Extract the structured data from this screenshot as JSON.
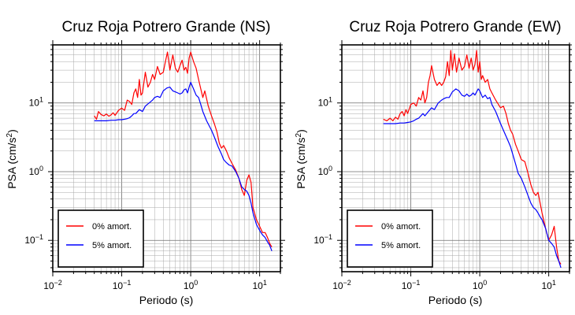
{
  "chart_data": [
    {
      "type": "line",
      "title": "Cruz Roja Potrero Grande (NS)",
      "xlabel": "Periodo (s)",
      "ylabel_main": "PSA (cm/s",
      "ylabel_sup": "2",
      "ylabel_tail": ")",
      "xscale": "log",
      "yscale": "log",
      "xlim": [
        0.01,
        20
      ],
      "ylim": [
        0.035,
        70
      ],
      "grid": true,
      "legend_position": "bottom-left",
      "x_ticks": [
        {
          "base": "10",
          "exp": "−2"
        },
        {
          "base": "10",
          "exp": "−1"
        },
        {
          "base": "10",
          "exp": "0"
        },
        {
          "base": "10",
          "exp": "1"
        }
      ],
      "y_ticks": [
        {
          "base": "10",
          "exp": "−1"
        },
        {
          "base": "10",
          "exp": "0"
        },
        {
          "base": "10",
          "exp": "1"
        }
      ],
      "series": [
        {
          "name": "0% amort.",
          "color": "#ff0000",
          "x": [
            0.04,
            0.043,
            0.046,
            0.05,
            0.055,
            0.06,
            0.065,
            0.07,
            0.075,
            0.08,
            0.09,
            0.1,
            0.11,
            0.12,
            0.13,
            0.14,
            0.15,
            0.16,
            0.17,
            0.18,
            0.19,
            0.2,
            0.22,
            0.24,
            0.26,
            0.28,
            0.3,
            0.33,
            0.36,
            0.4,
            0.43,
            0.46,
            0.5,
            0.55,
            0.6,
            0.65,
            0.7,
            0.75,
            0.8,
            0.85,
            0.9,
            0.95,
            1.0,
            1.1,
            1.2,
            1.3,
            1.4,
            1.5,
            1.6,
            1.8,
            2.0,
            2.2,
            2.4,
            2.6,
            2.8,
            3.0,
            3.3,
            3.6,
            4.0,
            4.5,
            5.0,
            5.5,
            6.0,
            6.5,
            7.0,
            7.5,
            8.0,
            9.0,
            10.0,
            11.0,
            12.0,
            13.0,
            14.0,
            15.0
          ],
          "y": [
            6.5,
            5.8,
            7.5,
            6.8,
            6.5,
            6.9,
            6.4,
            6.7,
            7.2,
            6.6,
            7.8,
            8.4,
            7.8,
            11.0,
            10.5,
            9.5,
            14.0,
            16.0,
            12.0,
            22.0,
            13.0,
            14.0,
            28.0,
            17.0,
            20.0,
            26.0,
            22.0,
            34.0,
            26.0,
            28.0,
            40.0,
            55.0,
            30.0,
            50.0,
            32.0,
            28.0,
            35.0,
            42.0,
            30.0,
            33.0,
            27.0,
            45.0,
            55.0,
            40.0,
            32.0,
            22.0,
            16.0,
            12.0,
            15.0,
            9.0,
            6.5,
            5.0,
            3.8,
            2.6,
            2.2,
            2.4,
            2.0,
            1.6,
            1.3,
            1.05,
            0.8,
            0.55,
            0.45,
            0.75,
            0.9,
            0.7,
            0.3,
            0.2,
            0.16,
            0.13,
            0.13,
            0.11,
            0.09,
            0.08
          ]
        },
        {
          "name": "5% amort.",
          "color": "#0000ff",
          "x": [
            0.04,
            0.05,
            0.06,
            0.07,
            0.08,
            0.09,
            0.1,
            0.11,
            0.12,
            0.13,
            0.14,
            0.15,
            0.16,
            0.18,
            0.2,
            0.22,
            0.25,
            0.28,
            0.3,
            0.33,
            0.36,
            0.4,
            0.45,
            0.5,
            0.55,
            0.6,
            0.65,
            0.7,
            0.75,
            0.8,
            0.85,
            0.9,
            0.95,
            1.0,
            1.1,
            1.2,
            1.3,
            1.4,
            1.5,
            1.7,
            2.0,
            2.2,
            2.5,
            2.8,
            3.0,
            3.3,
            3.6,
            4.0,
            4.5,
            5.0,
            5.5,
            6.0,
            6.5,
            7.0,
            7.5,
            8.0,
            9.0,
            10.0,
            11.0,
            12.0,
            13.0,
            14.0,
            15.0
          ],
          "y": [
            5.5,
            5.5,
            5.5,
            5.6,
            5.6,
            5.7,
            5.7,
            5.8,
            5.9,
            6.1,
            6.5,
            7.0,
            7.0,
            8.0,
            7.5,
            9.0,
            10.0,
            11.0,
            12.0,
            12.5,
            12.0,
            15.0,
            16.5,
            17.0,
            15.0,
            14.5,
            14.0,
            13.5,
            14.0,
            15.5,
            16.0,
            14.0,
            17.0,
            20.0,
            16.0,
            13.0,
            12.0,
            9.5,
            7.5,
            5.5,
            4.0,
            3.2,
            2.3,
            1.8,
            1.5,
            1.35,
            1.25,
            1.2,
            1.0,
            0.8,
            0.6,
            0.55,
            0.52,
            0.45,
            0.35,
            0.25,
            0.17,
            0.14,
            0.12,
            0.11,
            0.095,
            0.085,
            0.07
          ]
        }
      ],
      "legend": [
        {
          "label": "0% amort.",
          "color": "#ff0000"
        },
        {
          "label": "5% amort.",
          "color": "#0000ff"
        }
      ]
    },
    {
      "type": "line",
      "title": "Cruz Roja Potrero Grande (EW)",
      "xlabel": "Periodo (s)",
      "ylabel_main": "PSA (cm/s",
      "ylabel_sup": "2",
      "ylabel_tail": ")",
      "xscale": "log",
      "yscale": "log",
      "xlim": [
        0.01,
        20
      ],
      "ylim": [
        0.035,
        70
      ],
      "grid": true,
      "legend_position": "bottom-left",
      "x_ticks": [
        {
          "base": "10",
          "exp": "−2"
        },
        {
          "base": "10",
          "exp": "−1"
        },
        {
          "base": "10",
          "exp": "0"
        },
        {
          "base": "10",
          "exp": "1"
        }
      ],
      "y_ticks": [
        {
          "base": "10",
          "exp": "−1"
        },
        {
          "base": "10",
          "exp": "0"
        },
        {
          "base": "10",
          "exp": "1"
        }
      ],
      "series": [
        {
          "name": "0% amort.",
          "color": "#ff0000",
          "x": [
            0.04,
            0.045,
            0.05,
            0.055,
            0.06,
            0.065,
            0.07,
            0.075,
            0.08,
            0.085,
            0.09,
            0.1,
            0.11,
            0.12,
            0.13,
            0.14,
            0.15,
            0.16,
            0.17,
            0.18,
            0.19,
            0.2,
            0.22,
            0.24,
            0.26,
            0.28,
            0.3,
            0.32,
            0.34,
            0.36,
            0.38,
            0.4,
            0.43,
            0.46,
            0.5,
            0.55,
            0.6,
            0.65,
            0.7,
            0.75,
            0.8,
            0.85,
            0.9,
            0.95,
            1.0,
            1.05,
            1.1,
            1.2,
            1.3,
            1.4,
            1.5,
            1.7,
            2.0,
            2.2,
            2.4,
            2.6,
            2.8,
            3.0,
            3.3,
            3.6,
            4.0,
            4.5,
            5.0,
            5.5,
            6.0,
            6.5,
            7.0,
            7.5,
            8.0,
            9.0,
            10.0,
            11.0,
            12.0,
            13.0,
            14.0,
            15.0
          ],
          "y": [
            5.8,
            5.5,
            6.0,
            5.5,
            6.2,
            5.8,
            7.0,
            7.5,
            6.5,
            8.0,
            7.0,
            9.5,
            10.0,
            9.0,
            12.0,
            11.0,
            15.0,
            10.0,
            12.0,
            20.0,
            25.0,
            35.0,
            22.0,
            18.0,
            20.0,
            18.0,
            20.0,
            24.0,
            40.0,
            25.0,
            58.0,
            30.0,
            52.0,
            28.0,
            45.0,
            30.0,
            34.0,
            50.0,
            32.0,
            45.0,
            30.0,
            36.0,
            58.0,
            28.0,
            40.0,
            22.0,
            25.0,
            20.0,
            22.0,
            16.0,
            14.0,
            11.0,
            8.5,
            9.0,
            7.0,
            5.0,
            4.0,
            3.5,
            2.5,
            2.0,
            1.5,
            1.4,
            0.95,
            0.65,
            0.5,
            0.45,
            0.5,
            0.35,
            0.25,
            0.15,
            0.1,
            0.12,
            0.16,
            0.08,
            0.05,
            0.045
          ]
        },
        {
          "name": "5% amort.",
          "color": "#0000ff",
          "x": [
            0.04,
            0.05,
            0.06,
            0.07,
            0.08,
            0.09,
            0.1,
            0.11,
            0.12,
            0.13,
            0.14,
            0.15,
            0.16,
            0.18,
            0.2,
            0.22,
            0.25,
            0.28,
            0.3,
            0.33,
            0.36,
            0.4,
            0.45,
            0.5,
            0.55,
            0.6,
            0.65,
            0.7,
            0.75,
            0.8,
            0.85,
            0.9,
            0.95,
            1.0,
            1.1,
            1.2,
            1.3,
            1.4,
            1.5,
            1.7,
            2.0,
            2.2,
            2.5,
            2.8,
            3.0,
            3.3,
            3.6,
            4.0,
            4.5,
            5.0,
            5.5,
            6.0,
            6.5,
            7.0,
            7.5,
            8.0,
            9.0,
            10.0,
            11.0,
            12.0,
            13.0,
            14.0,
            15.0
          ],
          "y": [
            5.0,
            5.0,
            5.0,
            5.1,
            5.1,
            5.2,
            5.3,
            5.5,
            5.8,
            6.0,
            6.5,
            7.0,
            6.5,
            7.5,
            8.5,
            8.0,
            10.0,
            11.0,
            11.5,
            12.0,
            12.0,
            14.5,
            16.0,
            15.0,
            13.0,
            12.5,
            13.5,
            12.5,
            13.0,
            14.0,
            13.0,
            14.5,
            16.0,
            15.0,
            12.0,
            13.0,
            11.5,
            12.0,
            9.5,
            7.5,
            5.0,
            4.0,
            3.0,
            2.3,
            1.8,
            1.3,
            0.95,
            0.8,
            0.6,
            0.45,
            0.35,
            0.3,
            0.28,
            0.25,
            0.22,
            0.2,
            0.15,
            0.1,
            0.09,
            0.08,
            0.06,
            0.05,
            0.04
          ]
        }
      ],
      "legend": [
        {
          "label": "0% amort.",
          "color": "#ff0000"
        },
        {
          "label": "5% amort.",
          "color": "#0000ff"
        }
      ]
    }
  ]
}
